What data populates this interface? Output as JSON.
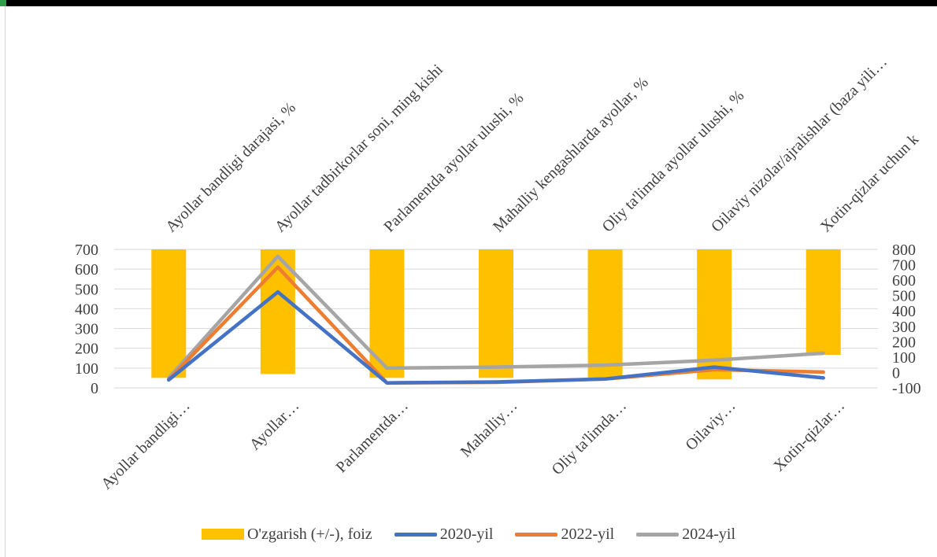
{
  "chart_data": {
    "type": "bar+line",
    "categories_bottom": [
      "Ayollar bandligi…",
      "Ayollar…",
      "Parlamentda…",
      "Mahalliy…",
      "Oliy ta'limda…",
      "Oilaviy…",
      "Xotin-qizlar…"
    ],
    "categories_top": [
      "Ayollar bandligi darajasi, %",
      "Ayollar tadbirkorlar soni, ming kishi",
      "Parlamentda ayollar ulushi, %",
      "Mahalliy kengashlarda ayollar, %",
      "Oliy ta'limda ayollar ulushi, %",
      "Oilaviy nizolar/ajralishlar (baza yili…",
      "Xotin-qizlar uchun k"
    ],
    "left_axis": {
      "ylim": [
        0,
        700
      ],
      "ticks": [
        "700",
        "600",
        "500",
        "400",
        "300",
        "200",
        "100",
        "0"
      ]
    },
    "right_axis": {
      "ylim": [
        -100,
        800
      ],
      "ticks": [
        "800",
        "700",
        "600",
        "500",
        "400",
        "300",
        "200",
        "100",
        "0",
        "-100"
      ]
    },
    "bars": {
      "name": "O'zgarish (+/-), foiz",
      "color": "#ffc000",
      "axis": "right",
      "top": 800,
      "bottoms": [
        -35,
        -10,
        -35,
        -35,
        -35,
        -45,
        115
      ]
    },
    "series": [
      {
        "name": "2020-yil",
        "color": "#4472c4",
        "axis": "left",
        "values": [
          40,
          485,
          25,
          30,
          45,
          105,
          50
        ]
      },
      {
        "name": "2022-yil",
        "color": "#ed7d31",
        "axis": "left",
        "values": [
          42,
          610,
          25,
          28,
          45,
          92,
          80
        ]
      },
      {
        "name": "2024-yil",
        "color": "#a5a5a5",
        "axis": "left",
        "values": [
          50,
          665,
          100,
          105,
          115,
          140,
          175
        ]
      }
    ],
    "grid": true,
    "legend_position": "bottom"
  }
}
